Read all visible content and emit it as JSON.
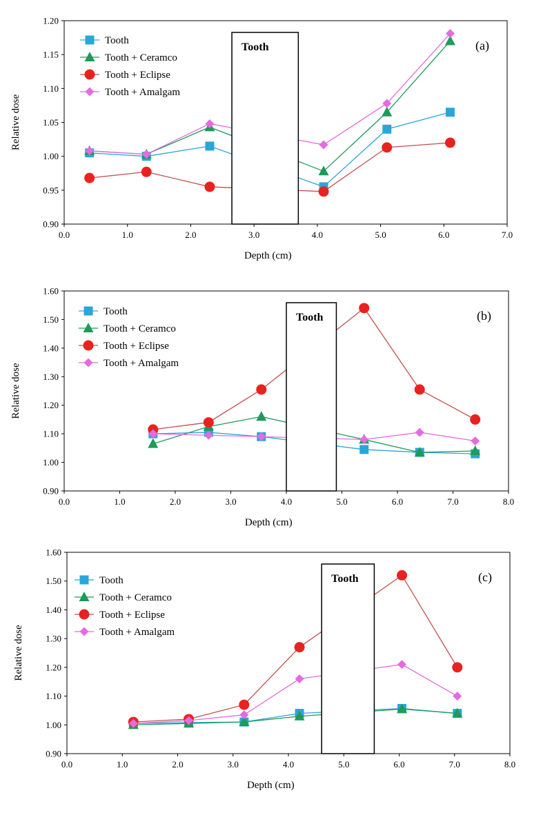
{
  "legend_labels": [
    "Tooth",
    "Tooth + Ceramco",
    "Tooth + Eclipse",
    "Tooth + Amalgam"
  ],
  "series_colors": [
    "#2AA6D8",
    "#1E9A5A",
    "#E8231F",
    "#E46BE0"
  ],
  "line_colors": [
    "#2AA6D8",
    "#1E9A5A",
    "#C0504D",
    "#E46BE0"
  ],
  "marker_shapes": [
    "square",
    "triangle",
    "circle",
    "diamond"
  ],
  "chart_data": [
    {
      "type": "line",
      "panel_label": "(a)",
      "xlabel": "Depth (cm)",
      "ylabel": "Relative dose",
      "xlim": [
        0,
        7
      ],
      "xticks": [
        0,
        1,
        2,
        3,
        4,
        5,
        6,
        7
      ],
      "xtick_labels": [
        "0.0",
        "1.0",
        "2.0",
        "3.0",
        "4.0",
        "5.0",
        "6.0",
        "7.0"
      ],
      "ylim": [
        0.9,
        1.2
      ],
      "yticks": [
        0.9,
        0.95,
        1.0,
        1.05,
        1.1,
        1.15,
        1.2
      ],
      "ytick_labels": [
        "0.90",
        "0.95",
        "1.00",
        "1.05",
        "1.10",
        "1.15",
        "1.20"
      ],
      "tooth_box": {
        "x_start": 2.65,
        "x_end": 3.7,
        "label": "Tooth"
      },
      "legend_position": "top-left",
      "grid": false,
      "series": [
        {
          "name": "Tooth",
          "x": [
            0.4,
            1.3,
            2.3,
            4.1,
            5.1,
            6.1
          ],
          "y": [
            1.005,
            1.0,
            1.015,
            0.955,
            1.04,
            1.065
          ]
        },
        {
          "name": "Tooth + Ceramco",
          "x": [
            0.4,
            1.3,
            2.3,
            4.1,
            5.1,
            6.1
          ],
          "y": [
            1.008,
            1.003,
            1.043,
            0.978,
            1.065,
            1.17
          ]
        },
        {
          "name": "Tooth + Eclipse",
          "x": [
            0.4,
            1.3,
            2.3,
            4.1,
            5.1,
            6.1
          ],
          "y": [
            0.968,
            0.977,
            0.955,
            0.948,
            1.013,
            1.02
          ]
        },
        {
          "name": "Tooth + Amalgam",
          "x": [
            0.4,
            1.3,
            2.3,
            4.1,
            5.1,
            6.1
          ],
          "y": [
            1.008,
            1.003,
            1.048,
            1.017,
            1.078,
            1.181
          ]
        }
      ]
    },
    {
      "type": "line",
      "panel_label": "(b)",
      "xlabel": "Depth (cm)",
      "ylabel": "Relative dose",
      "xlim": [
        0,
        8
      ],
      "xticks": [
        0,
        1,
        2,
        3,
        4,
        5,
        6,
        7,
        8
      ],
      "xtick_labels": [
        "0.0",
        "1.0",
        "2.0",
        "3.0",
        "4.0",
        "5.0",
        "6.0",
        "7.0",
        "8.0"
      ],
      "ylim": [
        0.9,
        1.6
      ],
      "yticks": [
        0.9,
        1.0,
        1.1,
        1.2,
        1.3,
        1.4,
        1.5,
        1.6
      ],
      "ytick_labels": [
        "0.90",
        "1.00",
        "1.10",
        "1.20",
        "1.30",
        "1.40",
        "1.50",
        "1.60"
      ],
      "tooth_box": {
        "x_start": 4.0,
        "x_end": 4.9,
        "label": "Tooth"
      },
      "legend_position": "top-left",
      "grid": false,
      "series": [
        {
          "name": "Tooth",
          "x": [
            1.6,
            2.6,
            3.55,
            5.4,
            6.4,
            7.4
          ],
          "y": [
            1.1,
            1.105,
            1.09,
            1.045,
            1.035,
            1.03
          ]
        },
        {
          "name": "Tooth + Ceramco",
          "x": [
            1.6,
            2.6,
            3.55,
            5.4,
            6.4,
            7.4
          ],
          "y": [
            1.065,
            1.125,
            1.16,
            1.08,
            1.035,
            1.04
          ]
        },
        {
          "name": "Tooth + Eclipse",
          "x": [
            1.6,
            2.6,
            3.55,
            5.4,
            6.4,
            7.4
          ],
          "y": [
            1.115,
            1.14,
            1.255,
            1.54,
            1.255,
            1.15
          ]
        },
        {
          "name": "Tooth + Amalgam",
          "x": [
            1.6,
            2.6,
            3.55,
            5.4,
            6.4,
            7.4
          ],
          "y": [
            1.1,
            1.095,
            1.09,
            1.08,
            1.105,
            1.075
          ]
        }
      ]
    },
    {
      "type": "line",
      "panel_label": "(c)",
      "xlabel": "Depth (cm)",
      "ylabel": "Relative dose",
      "xlim": [
        0,
        8
      ],
      "xticks": [
        0,
        1,
        2,
        3,
        4,
        5,
        6,
        7,
        8
      ],
      "xtick_labels": [
        "0.0",
        "1.0",
        "2.0",
        "3.0",
        "4.0",
        "5.0",
        "6.0",
        "7.0",
        "8.0"
      ],
      "ylim": [
        0.9,
        1.6
      ],
      "yticks": [
        0.9,
        1.0,
        1.1,
        1.2,
        1.3,
        1.4,
        1.5,
        1.6
      ],
      "ytick_labels": [
        "0.90",
        "1.00",
        "1.10",
        "1.20",
        "1.30",
        "1.40",
        "1.50",
        "1.60"
      ],
      "tooth_box": {
        "x_start": 4.6,
        "x_end": 5.55,
        "label": "Tooth"
      },
      "legend_position": "top-left",
      "grid": false,
      "series": [
        {
          "name": "Tooth",
          "x": [
            1.2,
            2.2,
            3.2,
            4.2,
            6.05,
            7.05
          ],
          "y": [
            1.005,
            1.008,
            1.01,
            1.04,
            1.057,
            1.04
          ]
        },
        {
          "name": "Tooth + Ceramco",
          "x": [
            1.2,
            2.2,
            3.2,
            4.2,
            6.05,
            7.05
          ],
          "y": [
            1.0,
            1.005,
            1.01,
            1.03,
            1.055,
            1.04
          ]
        },
        {
          "name": "Tooth + Eclipse",
          "x": [
            1.2,
            2.2,
            3.2,
            4.2,
            6.05,
            7.05
          ],
          "y": [
            1.01,
            1.02,
            1.07,
            1.27,
            1.52,
            1.2
          ]
        },
        {
          "name": "Tooth + Amalgam",
          "x": [
            1.2,
            2.2,
            3.2,
            4.2,
            6.05,
            7.05
          ],
          "y": [
            1.005,
            1.015,
            1.035,
            1.16,
            1.21,
            1.1
          ]
        }
      ]
    }
  ]
}
